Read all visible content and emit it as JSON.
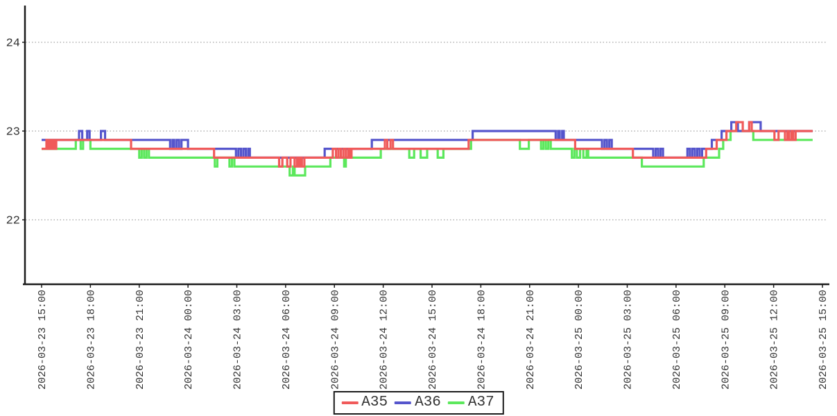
{
  "chart_data": {
    "type": "line",
    "style": "step-after",
    "title": "",
    "xlabel": "",
    "ylabel": "",
    "grid": "horizontal-dotted",
    "legend_position": "bottom-center",
    "x_axis": {
      "tick_interval_hours": 3,
      "tick_labels": [
        "2026-03-23 15:00",
        "2026-03-23 18:00",
        "2026-03-23 21:00",
        "2026-03-24 00:00",
        "2026-03-24 03:00",
        "2026-03-24 06:00",
        "2026-03-24 09:00",
        "2026-03-24 12:00",
        "2026-03-24 15:00",
        "2026-03-24 18:00",
        "2026-03-24 21:00",
        "2026-03-25 00:00",
        "2026-03-25 03:00",
        "2026-03-25 06:00",
        "2026-03-25 09:00",
        "2026-03-25 12:00",
        "2026-03-25 15:00"
      ],
      "data_end_hours": 47.4
    },
    "y_axis": {
      "tick_labels": [
        "22",
        "23",
        "24"
      ],
      "tick_values": [
        22,
        23,
        24
      ],
      "ylim": [
        21.3,
        24.4
      ]
    },
    "series": [
      {
        "name": "A35",
        "color": "#f05a5a",
        "points": [
          [
            0,
            22.8
          ],
          [
            0.3,
            22.9
          ],
          [
            0.4,
            22.8
          ],
          [
            0.5,
            22.9
          ],
          [
            0.6,
            22.8
          ],
          [
            0.7,
            22.9
          ],
          [
            0.8,
            22.8
          ],
          [
            0.9,
            22.9
          ],
          [
            5.5,
            22.8
          ],
          [
            10.6,
            22.7
          ],
          [
            14.6,
            22.6
          ],
          [
            14.8,
            22.7
          ],
          [
            15.1,
            22.6
          ],
          [
            15.3,
            22.7
          ],
          [
            15.55,
            22.6
          ],
          [
            15.7,
            22.7
          ],
          [
            15.8,
            22.6
          ],
          [
            15.9,
            22.7
          ],
          [
            16.0,
            22.6
          ],
          [
            16.15,
            22.7
          ],
          [
            17.9,
            22.8
          ],
          [
            18.1,
            22.7
          ],
          [
            18.25,
            22.8
          ],
          [
            18.4,
            22.7
          ],
          [
            18.55,
            22.8
          ],
          [
            18.7,
            22.7
          ],
          [
            18.85,
            22.8
          ],
          [
            18.95,
            22.7
          ],
          [
            19.05,
            22.8
          ],
          [
            21.1,
            22.9
          ],
          [
            21.25,
            22.8
          ],
          [
            21.45,
            22.9
          ],
          [
            21.6,
            22.8
          ],
          [
            26.25,
            22.9
          ],
          [
            32.8,
            22.8
          ],
          [
            36.35,
            22.7
          ],
          [
            40.85,
            22.8
          ],
          [
            41.5,
            22.9
          ],
          [
            42.1,
            23.0
          ],
          [
            42.7,
            23.1
          ],
          [
            43.1,
            23.0
          ],
          [
            43.5,
            23.1
          ],
          [
            43.65,
            23.0
          ],
          [
            45.05,
            22.9
          ],
          [
            45.3,
            23.0
          ],
          [
            45.7,
            22.9
          ],
          [
            45.85,
            23.0
          ],
          [
            45.95,
            22.9
          ],
          [
            46.1,
            23.0
          ],
          [
            46.2,
            22.9
          ],
          [
            46.35,
            23.0
          ]
        ]
      },
      {
        "name": "A36",
        "color": "#5555cc",
        "points": [
          [
            0,
            22.9
          ],
          [
            2.3,
            23.0
          ],
          [
            2.5,
            22.9
          ],
          [
            2.8,
            23.0
          ],
          [
            2.95,
            22.9
          ],
          [
            3.65,
            23.0
          ],
          [
            3.9,
            22.9
          ],
          [
            7.9,
            22.8
          ],
          [
            8.05,
            22.9
          ],
          [
            8.15,
            22.8
          ],
          [
            8.3,
            22.9
          ],
          [
            8.45,
            22.8
          ],
          [
            8.6,
            22.9
          ],
          [
            9.0,
            22.8
          ],
          [
            11.95,
            22.7
          ],
          [
            12.1,
            22.8
          ],
          [
            12.25,
            22.7
          ],
          [
            12.4,
            22.8
          ],
          [
            12.55,
            22.7
          ],
          [
            12.7,
            22.8
          ],
          [
            12.8,
            22.7
          ],
          [
            17.4,
            22.8
          ],
          [
            20.3,
            22.9
          ],
          [
            26.5,
            23.0
          ],
          [
            31.6,
            22.9
          ],
          [
            31.75,
            23.0
          ],
          [
            31.85,
            22.9
          ],
          [
            32.0,
            23.0
          ],
          [
            32.1,
            22.9
          ],
          [
            34.45,
            22.8
          ],
          [
            34.6,
            22.9
          ],
          [
            34.75,
            22.8
          ],
          [
            34.9,
            22.9
          ],
          [
            35.05,
            22.8
          ],
          [
            37.6,
            22.7
          ],
          [
            37.75,
            22.8
          ],
          [
            37.9,
            22.7
          ],
          [
            38.05,
            22.8
          ],
          [
            38.2,
            22.7
          ],
          [
            39.7,
            22.8
          ],
          [
            39.85,
            22.7
          ],
          [
            40.0,
            22.8
          ],
          [
            40.15,
            22.7
          ],
          [
            40.3,
            22.8
          ],
          [
            40.45,
            22.7
          ],
          [
            40.6,
            22.8
          ],
          [
            41.2,
            22.9
          ],
          [
            41.8,
            23.0
          ],
          [
            42.4,
            23.1
          ],
          [
            42.8,
            23.0
          ],
          [
            43.5,
            23.1
          ],
          [
            44.2,
            23.0
          ]
        ]
      },
      {
        "name": "A37",
        "color": "#5ce85c",
        "points": [
          [
            0,
            22.8
          ],
          [
            2.1,
            22.9
          ],
          [
            2.4,
            22.8
          ],
          [
            2.55,
            22.9
          ],
          [
            3.0,
            22.8
          ],
          [
            6.0,
            22.7
          ],
          [
            6.15,
            22.8
          ],
          [
            6.3,
            22.7
          ],
          [
            6.45,
            22.8
          ],
          [
            6.6,
            22.7
          ],
          [
            10.65,
            22.6
          ],
          [
            10.8,
            22.7
          ],
          [
            11.55,
            22.6
          ],
          [
            11.7,
            22.7
          ],
          [
            11.85,
            22.6
          ],
          [
            15.25,
            22.5
          ],
          [
            15.45,
            22.6
          ],
          [
            15.55,
            22.5
          ],
          [
            16.2,
            22.6
          ],
          [
            17.75,
            22.7
          ],
          [
            18.6,
            22.6
          ],
          [
            18.7,
            22.7
          ],
          [
            20.85,
            22.8
          ],
          [
            22.6,
            22.7
          ],
          [
            22.9,
            22.8
          ],
          [
            23.3,
            22.7
          ],
          [
            23.7,
            22.8
          ],
          [
            24.35,
            22.7
          ],
          [
            24.7,
            22.8
          ],
          [
            26.4,
            22.9
          ],
          [
            29.4,
            22.8
          ],
          [
            29.95,
            22.9
          ],
          [
            30.7,
            22.8
          ],
          [
            30.85,
            22.9
          ],
          [
            31.0,
            22.8
          ],
          [
            31.15,
            22.9
          ],
          [
            31.3,
            22.8
          ],
          [
            32.6,
            22.7
          ],
          [
            32.75,
            22.8
          ],
          [
            32.9,
            22.7
          ],
          [
            33.1,
            22.8
          ],
          [
            33.3,
            22.7
          ],
          [
            33.5,
            22.8
          ],
          [
            33.6,
            22.7
          ],
          [
            36.9,
            22.6
          ],
          [
            40.7,
            22.7
          ],
          [
            41.65,
            22.8
          ],
          [
            41.9,
            22.9
          ],
          [
            42.35,
            23.0
          ],
          [
            43.75,
            22.9
          ]
        ]
      }
    ],
    "colors": {
      "axis": "#1a1a1a",
      "gridline": "#888888",
      "tick_text": "#333333"
    }
  }
}
